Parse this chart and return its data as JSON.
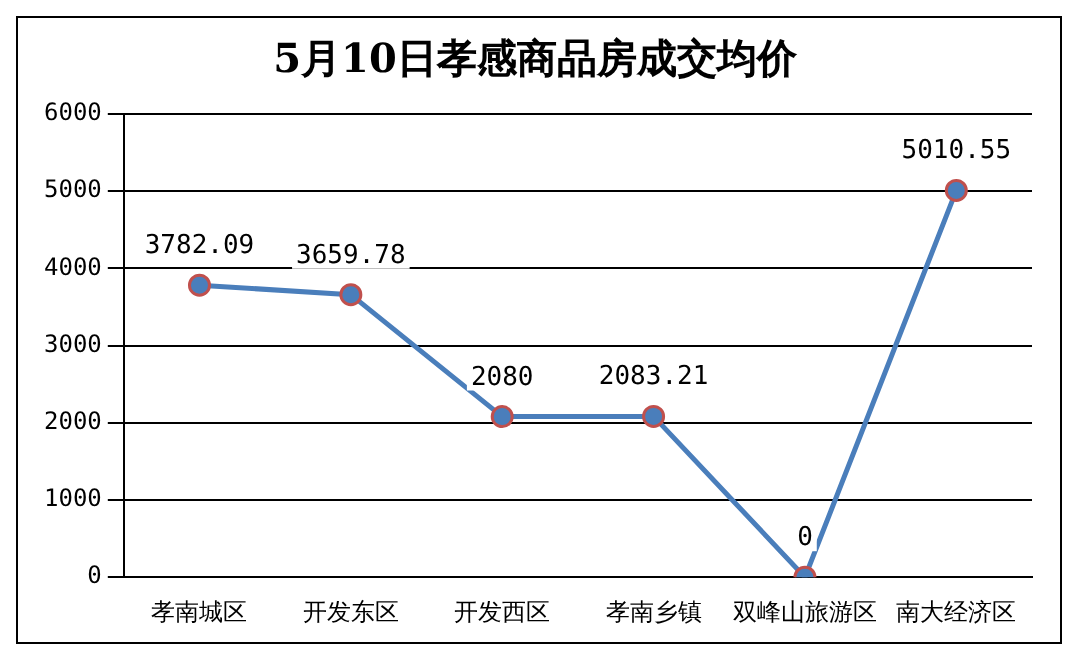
{
  "chart_data": {
    "type": "line",
    "title": "5月10日孝感商品房成交均价",
    "categories": [
      "孝南城区",
      "开发东区",
      "开发西区",
      "孝南乡镇",
      "双峰山旅游区",
      "南大经济区"
    ],
    "series": [
      {
        "color": "#4a7ebb",
        "values": [
          3782.09,
          3659.78,
          2080,
          2083.21,
          0,
          5010.55
        ]
      }
    ],
    "ylim": [
      0,
      6000
    ],
    "yticks": [
      0,
      1000,
      2000,
      3000,
      4000,
      5000,
      6000
    ],
    "grid": "y",
    "legend": false,
    "marker": "circle",
    "line_style": "solid",
    "data_labels": true
  }
}
